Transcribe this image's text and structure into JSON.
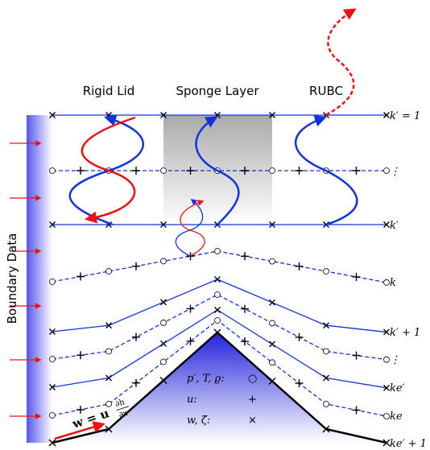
{
  "headers": [
    "Rigid Lid",
    "Sponge Layer",
    "RUBC"
  ],
  "side_label": "Boundary Data",
  "levels": [
    "k′ = 1",
    "⋮",
    "k′",
    "k",
    "k′ + 1",
    "⋮",
    "ke′",
    "ke",
    "ke′ + 1"
  ],
  "legend": [
    {
      "variables": "p′, T, ϱ:",
      "symbol": "○"
    },
    {
      "variables": "u:",
      "symbol": "+"
    },
    {
      "variables": "w, ζ̇:",
      "symbol": "×"
    }
  ],
  "formula": {
    "lhs": "w = u",
    "numerator": "∂h",
    "denominator": "∂x"
  }
}
